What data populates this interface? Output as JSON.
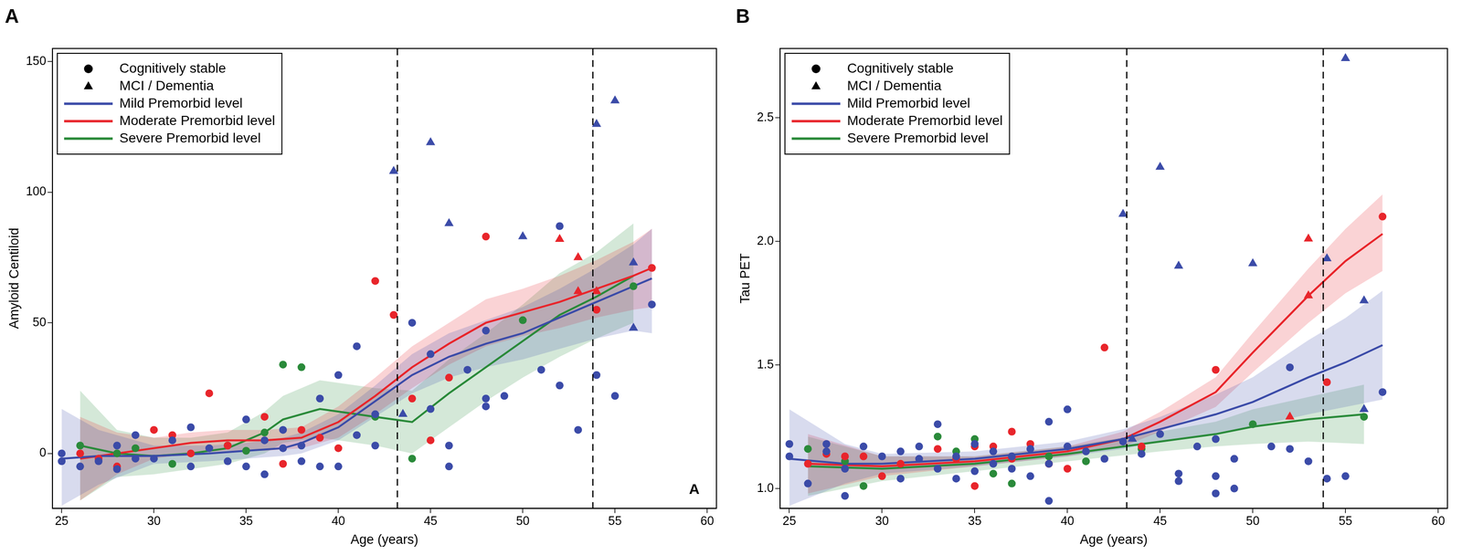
{
  "chart_data": [
    {
      "type": "scatter",
      "title": "A",
      "x_label": "Age (years)",
      "y_label": "Amyloid Centiloid",
      "xlim": [
        24.5,
        60.5
      ],
      "xticks": [
        25,
        30,
        35,
        40,
        45,
        50,
        55,
        60
      ],
      "ylim": [
        -21,
        155
      ],
      "yticks": [
        0,
        50,
        100,
        150
      ],
      "grid": false,
      "legend": "upper-left",
      "vlines": [
        43.2,
        53.8
      ],
      "annotations": [
        {
          "text": "A",
          "x": 59.3,
          "y": -14
        }
      ],
      "markers": [
        {
          "name": "Cognitively stable",
          "marker": "circle"
        },
        {
          "name": "MCI / Dementia",
          "marker": "triangle"
        }
      ],
      "series": [
        {
          "name": "Mild Premorbid level",
          "color": "#3b4ba8",
          "x": [
            25,
            27,
            30,
            33,
            35,
            37,
            38,
            40,
            42,
            44,
            46,
            48,
            50,
            52,
            54,
            56,
            57
          ],
          "values": [
            -2,
            -1,
            -1,
            0,
            1,
            2,
            4,
            10,
            20,
            30,
            37,
            42,
            46,
            52,
            58,
            64,
            67
          ],
          "lower": [
            -20,
            -12,
            -4,
            -3,
            -2,
            -1,
            0,
            5,
            14,
            23,
            29,
            33,
            36,
            40,
            44,
            47,
            46
          ],
          "upper": [
            17,
            9,
            3,
            3,
            4,
            6,
            8,
            15,
            26,
            38,
            46,
            51,
            56,
            63,
            71,
            80,
            86
          ],
          "points": [
            {
              "marker": "circle",
              "x": [
                25,
                25,
                26,
                27,
                28,
                28,
                29,
                29,
                30,
                31,
                32,
                32,
                33,
                34,
                35,
                35,
                36,
                36,
                37,
                37,
                38,
                38,
                39,
                39,
                40,
                40,
                41,
                41,
                42,
                42,
                44,
                45,
                45,
                46,
                46,
                47,
                48,
                48,
                48,
                49,
                51,
                52,
                52,
                53,
                54,
                55,
                57
              ],
              "values": [
                0,
                -3,
                -5,
                -3,
                3,
                -6,
                7,
                -2,
                -2,
                5,
                -5,
                10,
                2,
                -3,
                13,
                -5,
                5,
                -8,
                9,
                2,
                3,
                -3,
                -5,
                21,
                30,
                -5,
                41,
                7,
                3,
                15,
                50,
                38,
                17,
                3,
                -5,
                32,
                18,
                21,
                47,
                22,
                32,
                26,
                87,
                9,
                30,
                22,
                57
              ]
            },
            {
              "marker": "triangle",
              "x": [
                43,
                43.5,
                45,
                46,
                50,
                54,
                55,
                56,
                56
              ],
              "values": [
                108,
                15,
                119,
                88,
                83,
                126,
                135,
                73,
                48
              ]
            }
          ]
        },
        {
          "name": "Moderate Premorbid level",
          "color": "#e8252b",
          "x": [
            26,
            28,
            30,
            32,
            34,
            36,
            38,
            40,
            42,
            44,
            46,
            48,
            50,
            52,
            54,
            56,
            57
          ],
          "values": [
            -2,
            0,
            2,
            4,
            5,
            5,
            6,
            12,
            22,
            33,
            42,
            50,
            54,
            58,
            63,
            68,
            71
          ],
          "lower": [
            -18,
            -8,
            -2,
            0,
            1,
            1,
            2,
            6,
            15,
            25,
            34,
            41,
            45,
            48,
            52,
            55,
            56
          ],
          "upper": [
            14,
            8,
            6,
            8,
            9,
            9,
            10,
            18,
            29,
            41,
            50,
            59,
            63,
            68,
            74,
            81,
            86
          ],
          "points": [
            {
              "marker": "circle",
              "x": [
                26,
                27,
                28,
                30,
                31,
                32,
                33,
                34,
                36,
                37,
                38,
                39,
                40,
                42,
                43,
                44,
                45,
                46,
                48,
                54,
                57
              ],
              "values": [
                0,
                -2,
                -5,
                9,
                7,
                0,
                23,
                3,
                14,
                -4,
                9,
                6,
                2,
                66,
                53,
                21,
                5,
                29,
                83,
                55,
                71
              ]
            },
            {
              "marker": "triangle",
              "x": [
                52,
                53,
                53,
                54
              ],
              "values": [
                82,
                75,
                62,
                62
              ]
            }
          ]
        },
        {
          "name": "Severe Premorbid level",
          "color": "#2a8a3a",
          "x": [
            26,
            28,
            30,
            32,
            34,
            36,
            37,
            39,
            41,
            42,
            44,
            46,
            48,
            50,
            52,
            54,
            56
          ],
          "values": [
            3,
            0,
            -1,
            0,
            2,
            8,
            13,
            17,
            15,
            14,
            12,
            23,
            33,
            43,
            53,
            60,
            68
          ],
          "lower": [
            -18,
            -9,
            -8,
            -6,
            -4,
            0,
            4,
            6,
            4,
            3,
            0,
            10,
            20,
            29,
            37,
            44,
            50
          ],
          "upper": [
            24,
            9,
            6,
            6,
            8,
            16,
            22,
            28,
            26,
            25,
            24,
            36,
            46,
            57,
            69,
            77,
            88
          ],
          "points": [
            {
              "marker": "circle",
              "x": [
                26,
                28,
                29,
                31,
                34,
                35,
                36,
                37,
                38,
                42,
                44,
                50,
                56
              ],
              "values": [
                3,
                0,
                2,
                -4,
                3,
                1,
                8,
                34,
                33,
                14,
                -2,
                51,
                64
              ]
            }
          ]
        }
      ]
    },
    {
      "type": "scatter",
      "title": "B",
      "x_label": "Age (years)",
      "y_label": "Tau PET",
      "xlim": [
        24.5,
        60.5
      ],
      "xticks": [
        25,
        30,
        35,
        40,
        45,
        50,
        55,
        60
      ],
      "ylim": [
        0.92,
        2.78
      ],
      "yticks": [
        {
          "value": 1,
          "label": "1.0"
        },
        {
          "value": 1.5,
          "label": "1.5"
        },
        {
          "value": 2,
          "label": "2.0"
        },
        {
          "value": 2.5,
          "label": "2.5"
        }
      ],
      "grid": false,
      "legend": "upper-left",
      "vlines": [
        43.2,
        53.8
      ],
      "markers": [
        {
          "name": "Cognitively stable",
          "marker": "circle"
        },
        {
          "name": "MCI / Dementia",
          "marker": "triangle"
        }
      ],
      "series": [
        {
          "name": "Mild Premorbid level",
          "color": "#3b4ba8",
          "x": [
            25,
            28,
            30,
            35,
            40,
            43,
            45,
            48,
            50,
            53,
            55,
            57
          ],
          "values": [
            1.12,
            1.1,
            1.1,
            1.12,
            1.16,
            1.2,
            1.24,
            1.3,
            1.35,
            1.45,
            1.51,
            1.58
          ],
          "lower": [
            0.93,
            1.02,
            1.06,
            1.09,
            1.13,
            1.16,
            1.19,
            1.22,
            1.25,
            1.3,
            1.33,
            1.36
          ],
          "upper": [
            1.32,
            1.18,
            1.14,
            1.15,
            1.19,
            1.24,
            1.29,
            1.38,
            1.45,
            1.6,
            1.69,
            1.8
          ],
          "points": [
            {
              "marker": "circle",
              "x": [
                25,
                25,
                26,
                27,
                27,
                28,
                28,
                29,
                30,
                31,
                31,
                32,
                32,
                33,
                33,
                34,
                34,
                35,
                35,
                36,
                36,
                37,
                37,
                38,
                38,
                39,
                39,
                39,
                40,
                40,
                41,
                42,
                43,
                44,
                45,
                46,
                46,
                47,
                48,
                48,
                48,
                49,
                49,
                51,
                52,
                52,
                53,
                54,
                55,
                57
              ],
              "values": [
                1.18,
                1.13,
                1.02,
                1.18,
                1.15,
                0.97,
                1.08,
                1.17,
                1.13,
                1.04,
                1.15,
                1.12,
                1.17,
                1.26,
                1.08,
                1.04,
                1.13,
                1.07,
                1.18,
                1.1,
                1.15,
                1.13,
                1.08,
                1.05,
                1.16,
                0.95,
                1.27,
                1.1,
                1.32,
                1.17,
                1.15,
                1.12,
                1.19,
                1.14,
                1.22,
                1.03,
                1.06,
                1.17,
                1.2,
                1.05,
                0.98,
                1.12,
                1.0,
                1.17,
                1.16,
                1.49,
                1.11,
                1.04,
                1.05,
                1.39
              ]
            },
            {
              "marker": "triangle",
              "x": [
                43,
                45,
                46,
                50,
                54,
                55,
                56,
                56,
                43.5
              ],
              "values": [
                2.11,
                2.3,
                1.9,
                1.91,
                1.93,
                2.74,
                1.76,
                1.32,
                1.2
              ]
            }
          ]
        },
        {
          "name": "Moderate Premorbid level",
          "color": "#e8252b",
          "x": [
            26,
            30,
            35,
            40,
            43,
            45,
            48,
            50,
            53,
            55,
            57
          ],
          "values": [
            1.1,
            1.09,
            1.11,
            1.15,
            1.2,
            1.27,
            1.39,
            1.55,
            1.78,
            1.92,
            2.03
          ],
          "lower": [
            0.98,
            1.05,
            1.09,
            1.13,
            1.17,
            1.23,
            1.33,
            1.47,
            1.67,
            1.79,
            1.88
          ],
          "upper": [
            1.22,
            1.13,
            1.13,
            1.17,
            1.23,
            1.31,
            1.45,
            1.63,
            1.89,
            2.05,
            2.19
          ],
          "points": [
            {
              "marker": "circle",
              "x": [
                26,
                27,
                28,
                29,
                30,
                31,
                33,
                34,
                35,
                35,
                36,
                37,
                37,
                38,
                39,
                40,
                42,
                44,
                48,
                54,
                57
              ],
              "values": [
                1.1,
                1.14,
                1.13,
                1.13,
                1.05,
                1.1,
                1.16,
                1.12,
                1.01,
                1.17,
                1.17,
                1.23,
                1.12,
                1.18,
                1.1,
                1.08,
                1.57,
                1.17,
                1.48,
                1.43,
                2.1
              ]
            },
            {
              "marker": "triangle",
              "x": [
                52,
                53,
                53
              ],
              "values": [
                1.29,
                2.01,
                1.78
              ]
            }
          ]
        },
        {
          "name": "Severe Premorbid level",
          "color": "#2a8a3a",
          "x": [
            26,
            30,
            35,
            40,
            45,
            48,
            50,
            53,
            56
          ],
          "values": [
            1.09,
            1.08,
            1.1,
            1.14,
            1.19,
            1.22,
            1.25,
            1.28,
            1.3
          ],
          "lower": [
            0.97,
            1.03,
            1.07,
            1.11,
            1.15,
            1.17,
            1.18,
            1.19,
            1.18
          ],
          "upper": [
            1.21,
            1.13,
            1.13,
            1.17,
            1.23,
            1.27,
            1.32,
            1.37,
            1.42
          ],
          "points": [
            {
              "marker": "circle",
              "x": [
                26,
                28,
                29,
                33,
                34,
                35,
                36,
                37,
                39,
                41,
                44,
                50,
                56
              ],
              "values": [
                1.16,
                1.11,
                1.01,
                1.21,
                1.15,
                1.2,
                1.06,
                1.02,
                1.13,
                1.11,
                1.16,
                1.26,
                1.29
              ]
            }
          ]
        }
      ]
    }
  ]
}
